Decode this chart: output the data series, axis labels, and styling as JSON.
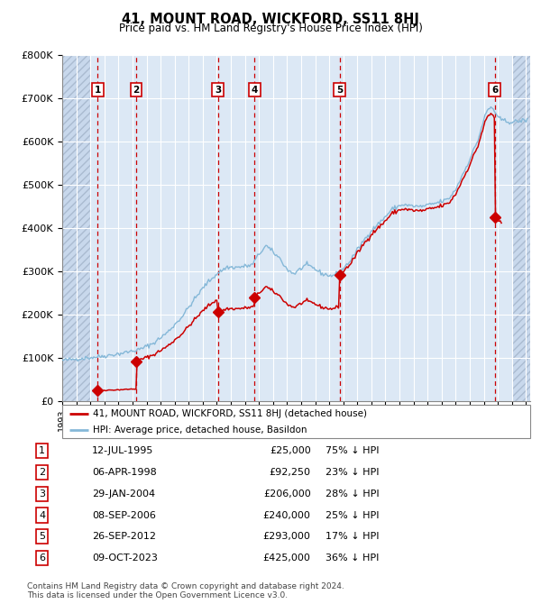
{
  "title": "41, MOUNT ROAD, WICKFORD, SS11 8HJ",
  "subtitle": "Price paid vs. HM Land Registry's House Price Index (HPI)",
  "footer1": "Contains HM Land Registry data © Crown copyright and database right 2024.",
  "footer2": "This data is licensed under the Open Government Licence v3.0.",
  "legend_red": "41, MOUNT ROAD, WICKFORD, SS11 8HJ (detached house)",
  "legend_blue": "HPI: Average price, detached house, Basildon",
  "sale_labels": [
    "1",
    "2",
    "3",
    "4",
    "5",
    "6"
  ],
  "sale_dates_str": [
    "12-JUL-1995",
    "06-APR-1998",
    "29-JAN-2004",
    "08-SEP-2006",
    "26-SEP-2012",
    "09-OCT-2023"
  ],
  "sale_prices": [
    25000,
    92250,
    206000,
    240000,
    293000,
    425000
  ],
  "sale_prices_str": [
    "£25,000",
    "£92,250",
    "£206,000",
    "£240,000",
    "£293,000",
    "£425,000"
  ],
  "sale_hpi_str": [
    "75% ↓ HPI",
    "23% ↓ HPI",
    "28% ↓ HPI",
    "25% ↓ HPI",
    "17% ↓ HPI",
    "36% ↓ HPI"
  ],
  "sale_t": [
    1995.53,
    1998.27,
    2004.07,
    2006.68,
    2012.74,
    2023.77
  ],
  "background_color": "#dce8f5",
  "hatch_bg": "#c8d8ec",
  "grid_color": "#ffffff",
  "red_color": "#cc0000",
  "blue_color": "#85b8d8",
  "ylim": [
    0,
    800000
  ],
  "yticks": [
    0,
    100000,
    200000,
    300000,
    400000,
    500000,
    600000,
    700000,
    800000
  ],
  "ytick_labels": [
    "£0",
    "£100K",
    "£200K",
    "£300K",
    "£400K",
    "£500K",
    "£600K",
    "£700K",
    "£800K"
  ],
  "xlim_start": 1993.0,
  "xlim_end": 2026.3,
  "hatch_right_start": 2025.0,
  "hatch_left_end": 1995.0
}
